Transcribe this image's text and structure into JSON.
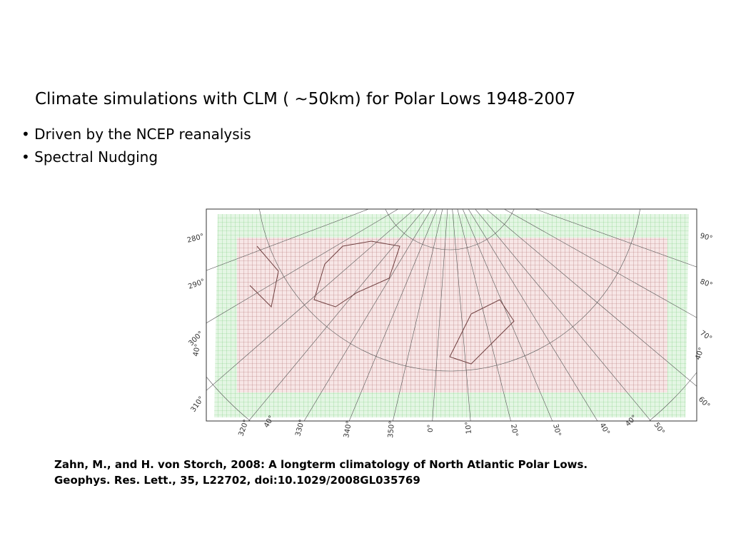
{
  "slide": {
    "title": "Climate simulations with CLM ( ~50km) for Polar Lows 1948-2007",
    "bullets": [
      "Driven by the NCEP reanalysis",
      "Spectral Nudging"
    ],
    "map_labels": {
      "left": [
        "280°",
        "290°",
        "300°",
        "40°",
        "310°"
      ],
      "bottom": [
        "320°",
        "40°",
        "330°",
        "340°",
        "350°",
        "0°",
        "10°",
        "20°",
        "30°",
        "40°",
        "40°",
        "50°"
      ],
      "right": [
        "90°",
        "80°",
        "70°",
        "40°",
        "60°"
      ]
    },
    "citation": [
      "Zahn, M., and H. von Storch, 2008: A longterm climatology of North Atlantic Polar Lows.",
      "Geophys. Res. Lett., 35, L22702, doi:10.1029/2008GL035769"
    ]
  }
}
